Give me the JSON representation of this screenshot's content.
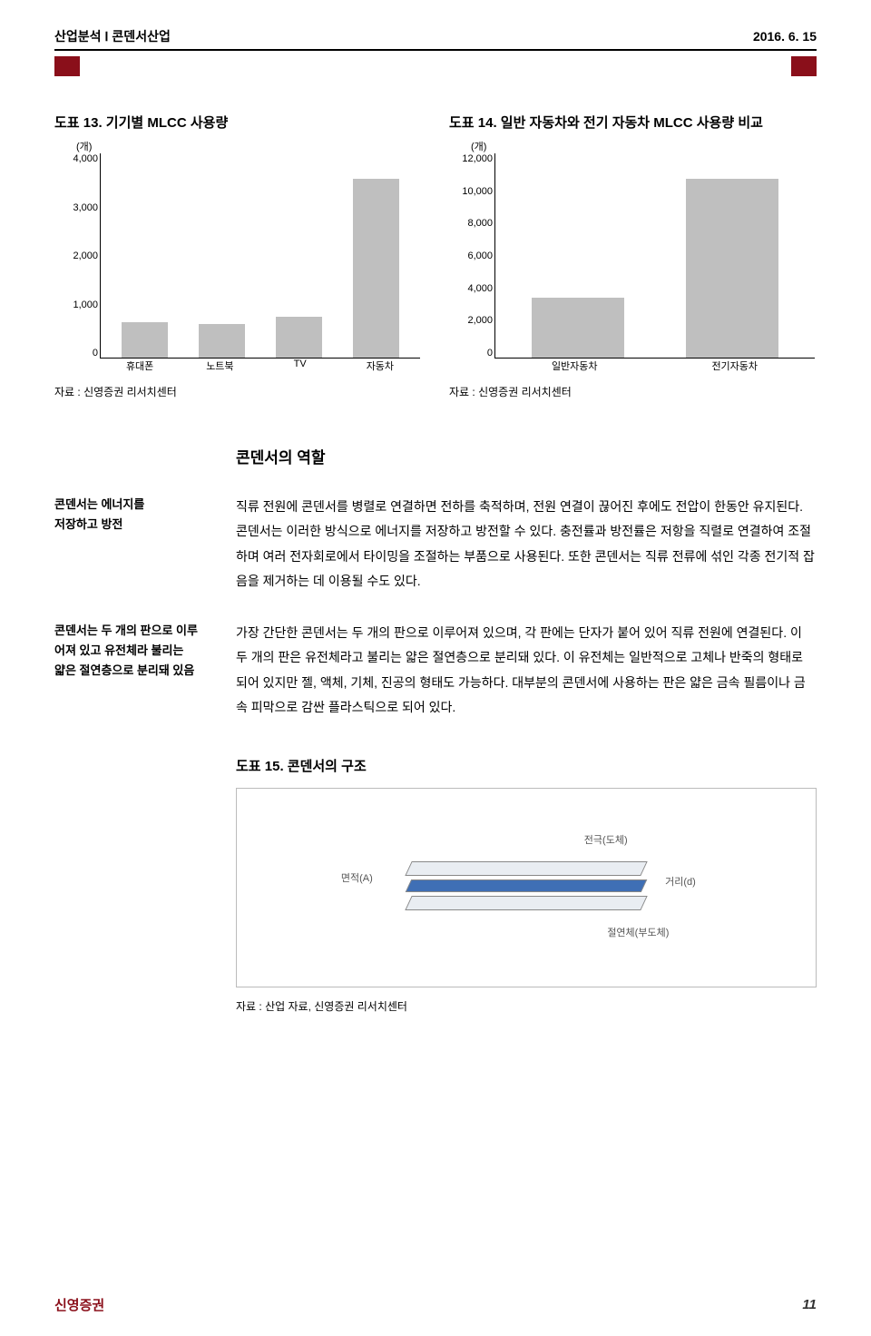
{
  "header": {
    "left": "산업분석 Ⅰ 콘덴서산업",
    "right": "2016. 6. 15"
  },
  "chart_left": {
    "type": "bar",
    "title": "도표 13. 기기별 MLCC 사용량",
    "unit": "(개)",
    "ymax": 4000,
    "ylabels": [
      "4,000",
      "3,000",
      "2,000",
      "1,000",
      "0"
    ],
    "categories": [
      "휴대폰",
      "노트북",
      "TV",
      "자동차"
    ],
    "values": [
      700,
      650,
      800,
      3500
    ],
    "bar_color": "#bfbfbf",
    "source": "자료 : 신영증권 리서치센터"
  },
  "chart_right": {
    "type": "bar",
    "title": "도표 14. 일반 자동차와 전기 자동차 MLCC 사용량 비교",
    "unit": "(개)",
    "ymax": 12000,
    "ylabels": [
      "12,000",
      "10,000",
      "8,000",
      "6,000",
      "4,000",
      "2,000",
      "0"
    ],
    "categories": [
      "일반자동차",
      "전기자동차"
    ],
    "values": [
      3500,
      10500
    ],
    "bar_color": "#bfbfbf",
    "source": "자료 : 신영증권 리서치센터"
  },
  "section_title": "콘덴서의 역할",
  "para1": {
    "note": "콘덴서는 에너지를\n저장하고 방전",
    "body": "직류 전원에 콘덴서를 병렬로 연결하면 전하를 축적하며, 전원 연결이 끊어진 후에도 전압이 한동안 유지된다. 콘덴서는 이러한 방식으로 에너지를 저장하고 방전할 수 있다. 충전률과 방전률은 저항을 직렬로 연결하여 조절하며 여러 전자회로에서 타이밍을 조절하는 부품으로 사용된다. 또한 콘덴서는 직류 전류에 섞인 각종 전기적 잡음을 제거하는 데 이용될 수도 있다."
  },
  "para2": {
    "note": "콘덴서는 두 개의 판으로 이루\n어져 있고 유전체라 불리는\n얇은 절연층으로 분리돼 있음",
    "body": "가장 간단한 콘덴서는 두 개의 판으로 이루어져 있으며, 각 판에는 단자가 붙어 있어 직류 전원에 연결된다. 이 두 개의 판은 유전체라고 불리는 얇은 절연층으로 분리돼 있다. 이 유전체는 일반적으로 고체나 반죽의 형태로 되어 있지만 젤, 액체, 기체, 진공의 형태도 가능하다. 대부분의 콘덴서에 사용하는 판은 얇은 금속 필름이나 금속 피막으로 감싼 플라스틱으로 되어 있다."
  },
  "figure": {
    "title": "도표 15. 콘덴서의 구조",
    "label_top": "전극(도체)",
    "label_area": "면적(A)",
    "label_d": "거리(d)",
    "label_ins": "절연체(부도체)",
    "source": "자료 : 산업 자료, 신영증권 리서치센터"
  },
  "footer": {
    "brand": "신영증권",
    "page": "11"
  }
}
